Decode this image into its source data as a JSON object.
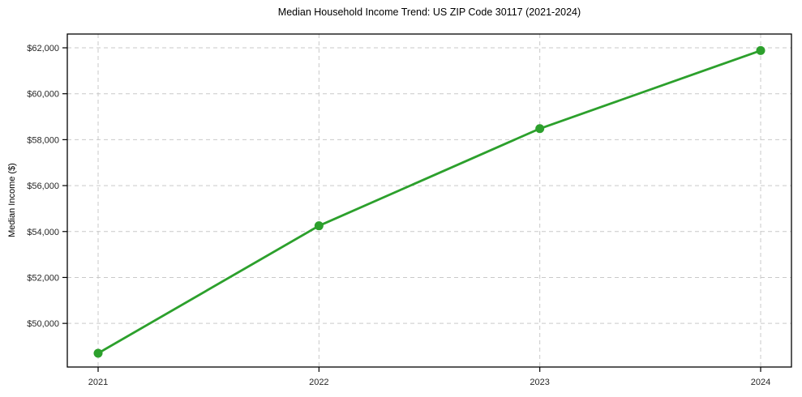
{
  "chart_data": {
    "type": "line",
    "title": "Median Household Income Trend: US ZIP Code 30117 (2021-2024)",
    "xlabel": "",
    "ylabel": "Median Income ($)",
    "categories": [
      "2021",
      "2022",
      "2023",
      "2024"
    ],
    "values": [
      48700,
      54250,
      58480,
      61880
    ],
    "y_ticks": [
      50000,
      52000,
      54000,
      56000,
      58000,
      60000,
      62000
    ],
    "y_tick_labels": [
      "$50,000",
      "$52,000",
      "$54,000",
      "$56,000",
      "$58,000",
      "$60,000",
      "$62,000"
    ],
    "ylim": [
      48100,
      62600
    ],
    "grid": "dashed, both axes",
    "legend_position": "none",
    "line_color": "#2ca02c",
    "marker": "circle",
    "grid_color": "#c9c9c9",
    "axis_color": "#000000",
    "tick_text_color": "#262626"
  }
}
